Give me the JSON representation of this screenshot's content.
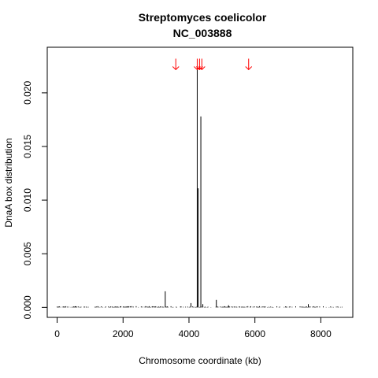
{
  "chart_data": {
    "type": "bar",
    "title": "Streptomyces coelicolor",
    "subtitle": "NC_003888",
    "xlabel": "Chromosome coordinate (kb)",
    "ylabel": "DnaA box distribution",
    "xlim": [
      -300,
      8970
    ],
    "ylim": [
      -0.00093,
      0.02425
    ],
    "x_ticks": [
      0,
      2000,
      4000,
      6000,
      8000
    ],
    "x_tick_labels": [
      "0",
      "2000",
      "4000",
      "6000",
      "8000"
    ],
    "y_ticks": [
      0.0,
      0.005,
      0.01,
      0.015,
      0.02
    ],
    "y_tick_labels": [
      "0.000",
      "0.005",
      "0.010",
      "0.015",
      "0.020"
    ],
    "grid": false,
    "bar_color": "#000000",
    "baseline_noise_range_kb": [
      0,
      8660
    ],
    "spikes": [
      {
        "x": 3280,
        "y": 0.0015
      },
      {
        "x": 4060,
        "y": 0.0004
      },
      {
        "x": 4250,
        "y": 0.0225
      },
      {
        "x": 4280,
        "y": 0.0111
      },
      {
        "x": 4360,
        "y": 0.0178
      },
      {
        "x": 4420,
        "y": 0.0003
      },
      {
        "x": 4830,
        "y": 0.0007
      },
      {
        "x": 5200,
        "y": 0.0002
      },
      {
        "x": 7620,
        "y": 0.0003
      }
    ],
    "arrows": {
      "color": "#ff0000",
      "x": [
        3600,
        4250,
        4320,
        4390,
        5810
      ],
      "y": 0.0226
    }
  }
}
